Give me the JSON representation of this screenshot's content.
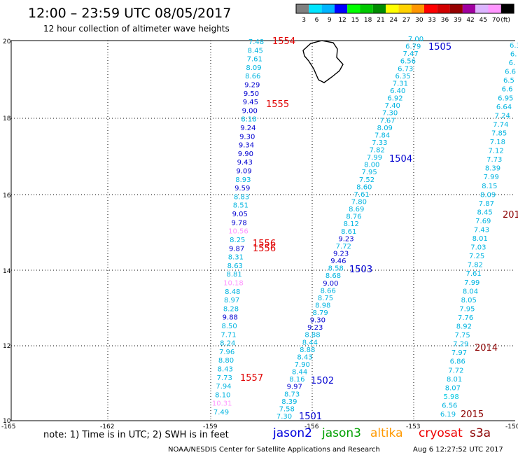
{
  "title": "12:00 – 23:59 UTC 08/05/2017",
  "subtitle": "12 hour collection of altimeter wave heights",
  "legend": {
    "unit_label": "(ft)",
    "entries": [
      {
        "label": "3",
        "color": "#808080"
      },
      {
        "label": "6",
        "color": "#00e5ff"
      },
      {
        "label": "9",
        "color": "#00b4ff"
      },
      {
        "label": "12",
        "color": "#0000ff"
      },
      {
        "label": "15",
        "color": "#00ff00"
      },
      {
        "label": "18",
        "color": "#00c800"
      },
      {
        "label": "21",
        "color": "#008c00"
      },
      {
        "label": "24",
        "color": "#ffff00"
      },
      {
        "label": "27",
        "color": "#ffd200"
      },
      {
        "label": "30",
        "color": "#ff9600"
      },
      {
        "label": "33",
        "color": "#ff0000"
      },
      {
        "label": "36",
        "color": "#d20000"
      },
      {
        "label": "39",
        "color": "#960000"
      },
      {
        "label": "42",
        "color": "#a000a0"
      },
      {
        "label": "45",
        "color": "#dcb4ff"
      },
      {
        "label": "70",
        "color": "#ff96ff"
      },
      {
        "label": "",
        "color": "#000000"
      }
    ]
  },
  "axes": {
    "x_ticks": [
      "-165",
      "-162",
      "-159",
      "-156",
      "-153",
      "-150"
    ],
    "y_ticks": [
      "20",
      "18",
      "16",
      "14",
      "12",
      "10"
    ]
  },
  "tracks": {
    "a": [
      "7.48",
      "8.45",
      "7.61",
      "8.09",
      "8.66",
      "9.29",
      "9.50",
      "9.45",
      "9.00",
      "8.18",
      "9.24",
      "9.30",
      "9.34",
      "9.90",
      "9.43",
      "9.09",
      "8.93",
      "9.59",
      "8.83",
      "8.51",
      "9.05",
      "9.78",
      "10.56",
      "8.25",
      "9.87",
      "8.31",
      "8.63",
      "8.81",
      "10.18",
      "8.48",
      "8.97",
      "8.28",
      "9.88",
      "8.50",
      "7.71",
      "8.24",
      "7.96",
      "8.80",
      "8.43",
      "7.73",
      "7.94",
      "8.10",
      "10.31",
      "7.49"
    ],
    "b": [
      "7.00",
      "6.79",
      "7.47",
      "6.56",
      "6.73",
      "6.35",
      "7.31",
      "6.40",
      "6.92",
      "7.40",
      "7.30",
      "7.67",
      "8.09",
      "7.84",
      "7.33",
      "7.82",
      "7.99",
      "8.00",
      "7.95",
      "7.52",
      "8.60",
      "7.61",
      "7.80",
      "8.69",
      "8.76",
      "8.12",
      "8.61",
      "9.23",
      "7.72",
      "9.23",
      "9.46",
      "8.58",
      "8.68",
      "9.00",
      "8.66",
      "8.75",
      "8.98",
      "8.79",
      "9.30",
      "9.23",
      "8.88",
      "8.44",
      "8.88",
      "8.43",
      "7.90",
      "8.44",
      "8.16",
      "9.97",
      "8.73",
      "8.39",
      "7.58",
      "7.30"
    ],
    "c": [
      "6.3",
      "6.",
      "6.",
      "6.6",
      "6.5",
      "6.6",
      "6.95",
      "6.64",
      "7.24",
      "7.74",
      "7.85",
      "7.18",
      "7.12",
      "7.73",
      "8.39",
      "7.99",
      "8.15",
      "8.09",
      "7.87",
      "8.45",
      "7.69",
      "7.43",
      "8.01",
      "7.03",
      "7.25",
      "7.82",
      "7.61",
      "7.99",
      "8.04",
      "8.05",
      "7.95",
      "7.76",
      "8.92",
      "7.75",
      "7.29",
      "7.97",
      "6.86",
      "7.72",
      "8.01",
      "8.07",
      "5.98",
      "6.56",
      "6.19"
    ]
  },
  "pass_labels": [
    {
      "text": "1554",
      "color": "#e00000"
    },
    {
      "text": "1555",
      "color": "#e00000"
    },
    {
      "text": "1556",
      "color": "#e00000"
    },
    {
      "text": "1556",
      "color": "#e00000"
    },
    {
      "text": "1557",
      "color": "#e00000"
    },
    {
      "text": "1505",
      "color": "#0000d0"
    },
    {
      "text": "1504",
      "color": "#0000d0"
    },
    {
      "text": "1503",
      "color": "#0000d0"
    },
    {
      "text": "1502",
      "color": "#0000d0"
    },
    {
      "text": "1501",
      "color": "#0000d0"
    },
    {
      "text": "201",
      "color": "#8b0000"
    },
    {
      "text": "2014",
      "color": "#8b0000"
    },
    {
      "text": "2015",
      "color": "#8b0000"
    }
  ],
  "note": "note: 1) Time is in UTC; 2) SWH is in feet",
  "satellites": [
    {
      "name": "jason2",
      "color": "#0000dd"
    },
    {
      "name": "jason3",
      "color": "#00a000"
    },
    {
      "name": "altika",
      "color": "#ff9900"
    },
    {
      "name": "cryosat",
      "color": "#ee0000"
    },
    {
      "name": "s3a",
      "color": "#8b0000"
    }
  ],
  "footer": {
    "credit": "NOAA/NESDIS Center for Satellite Applications and Research",
    "timestamp": "Aug  6 12:27:52 UTC 2017"
  }
}
